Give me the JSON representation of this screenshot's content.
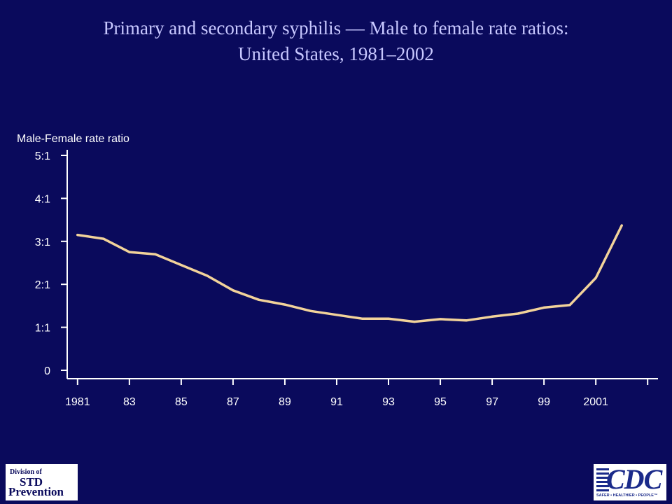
{
  "title_line1": "Primary and secondary syphilis — Male to female rate ratios:",
  "title_line2": "United States, 1981–2002",
  "logos": {
    "std_line1": "Division of",
    "std_line2": "STD",
    "std_line3": "Prevention",
    "cdc_text": "CDC",
    "cdc_tagline": "SAFER • HEALTHIER • PEOPLE™"
  },
  "colors": {
    "background": "#0a0a5c",
    "title": "#c8c8ff",
    "axis": "#ffffff",
    "line": "#f2d39a"
  },
  "chart_data": {
    "type": "line",
    "title": "Primary and secondary syphilis — Male to female rate ratios: United States, 1981–2002",
    "ylabel": "Male-Female rate ratio",
    "xlabel": "",
    "x": [
      1981,
      1982,
      1983,
      1984,
      1985,
      1986,
      1987,
      1988,
      1989,
      1990,
      1991,
      1992,
      1993,
      1994,
      1995,
      1996,
      1997,
      1998,
      1999,
      2000,
      2001,
      2002
    ],
    "series": [
      {
        "values": [
          3.15,
          3.06,
          2.75,
          2.7,
          2.45,
          2.2,
          1.86,
          1.64,
          1.53,
          1.38,
          1.29,
          1.2,
          1.2,
          1.13,
          1.19,
          1.16,
          1.25,
          1.32,
          1.46,
          1.52,
          2.15,
          3.37
        ]
      }
    ],
    "xlim": [
      1980.6,
      2003.4
    ],
    "ylim": [
      0,
      5
    ],
    "x_tick_years": [
      1981,
      1983,
      1985,
      1987,
      1989,
      1991,
      1993,
      1995,
      1997,
      1999,
      2001
    ],
    "x_tick_labels": [
      "1981",
      "83",
      "85",
      "87",
      "89",
      "91",
      "93",
      "95",
      "97",
      "99",
      "2001"
    ],
    "y_tick_values": [
      0,
      1,
      2,
      3,
      4,
      5
    ],
    "y_tick_labels": [
      "0",
      "1:1",
      "2:1",
      "3:1",
      "4:1",
      "5:1"
    ],
    "grid": false,
    "legend": "none"
  }
}
